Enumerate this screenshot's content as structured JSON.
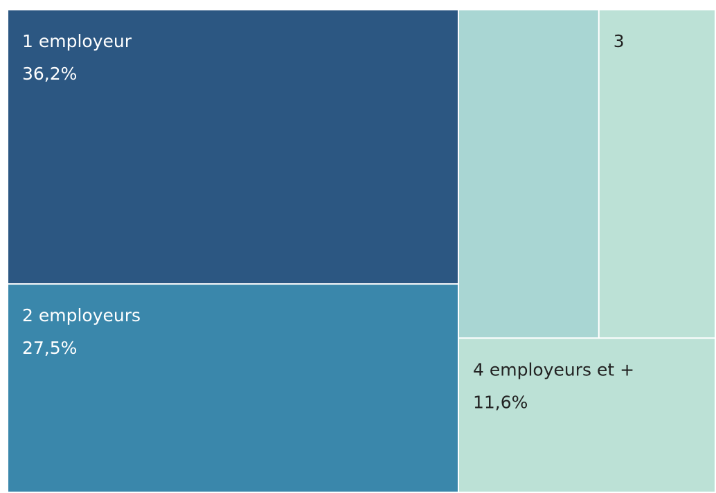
{
  "chart_data": {
    "type": "treemap",
    "categories": [
      "1 employeur",
      "2 employeurs",
      null,
      "3",
      "4 employeurs et +"
    ],
    "values": [
      36.2,
      27.5,
      13.5,
      11.2,
      11.6
    ],
    "value_labels": [
      "36,2%",
      "27,5%",
      null,
      null,
      "11,6%"
    ],
    "colors": [
      "#2c5782",
      "#3a87ab",
      "#a9d6d3",
      "#bce1d6",
      "#bce1d6"
    ]
  }
}
